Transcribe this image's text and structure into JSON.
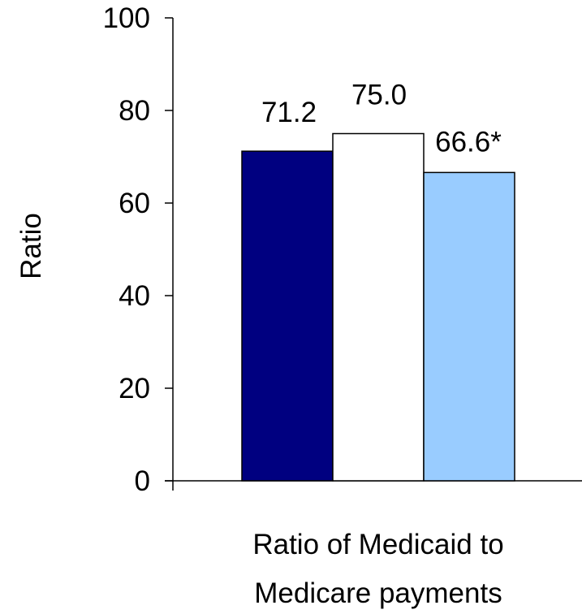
{
  "chart_data": {
    "type": "bar",
    "title": "",
    "categories": [
      "Ratio of Medicaid to Medicare payments"
    ],
    "category_label_lines": [
      "Ratio of Medicaid to",
      "Medicare payments"
    ],
    "ylabel": "Ratio",
    "xlabel": "",
    "ylim": [
      0,
      100
    ],
    "yticks": [
      0,
      20,
      40,
      60,
      80,
      100
    ],
    "ytick_labels": [
      "0",
      "20",
      "40",
      "60",
      "80",
      "100"
    ],
    "grid": false,
    "legend": "none",
    "series": [
      {
        "values": [
          71.2
        ],
        "color": "#000080",
        "data_label": "71.2"
      },
      {
        "values": [
          75.0
        ],
        "color": "#ffffff",
        "data_label": "75.0"
      },
      {
        "values": [
          66.6
        ],
        "color": "#99ccff",
        "data_label": "66.6*"
      }
    ]
  }
}
